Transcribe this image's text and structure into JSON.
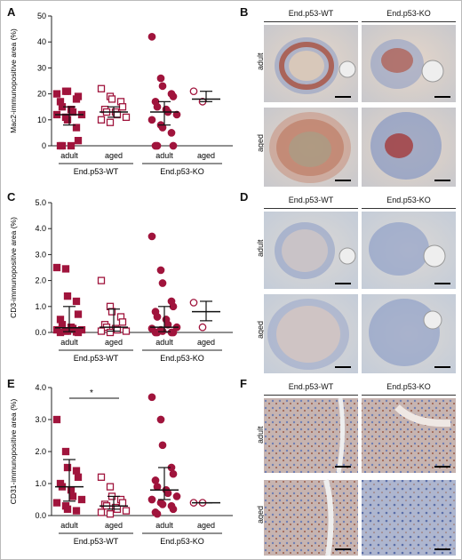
{
  "panels": {
    "a": "A",
    "b": "B",
    "c": "C",
    "d": "D",
    "e": "E",
    "f": "F"
  },
  "colors": {
    "accent": "#a0143c"
  },
  "chart_data": [
    {
      "type": "scatter",
      "ylabel": "Mac2-immunopositive area (%)",
      "ylim": [
        0,
        50
      ],
      "yticks": [
        "0",
        "10",
        "20",
        "30",
        "40",
        "50"
      ],
      "categories": [
        "adult",
        "aged",
        "adult",
        "aged"
      ],
      "groups": [
        "End.p53-WT",
        "End.p53-KO"
      ],
      "markers": [
        "filled-square",
        "open-square",
        "filled-circle",
        "open-circle"
      ],
      "points": [
        [
          20,
          21,
          21,
          18,
          19,
          17,
          15,
          14,
          13,
          12,
          12,
          11,
          10,
          7,
          2,
          0,
          0,
          0
        ],
        [
          22,
          19,
          18,
          17,
          15,
          14,
          13,
          13,
          12,
          11,
          10,
          9
        ],
        [
          42,
          26,
          23,
          20,
          19,
          17,
          15,
          14,
          13,
          12,
          10,
          8,
          7,
          5,
          0,
          0,
          0
        ],
        [
          21,
          17
        ]
      ],
      "median": [
        12,
        13,
        13,
        18
      ],
      "err_low": [
        8,
        11,
        8,
        17
      ],
      "err_high": [
        15,
        15,
        17,
        21
      ],
      "annotation": ""
    },
    {
      "type": "scatter",
      "ylabel": "CD3-immunopositive area (%)",
      "ylim": [
        0,
        5
      ],
      "yticks": [
        "0.0",
        "1.0",
        "2.0",
        "3.0",
        "4.0",
        "5.0"
      ],
      "categories": [
        "adult",
        "aged",
        "adult",
        "aged"
      ],
      "groups": [
        "End.p53-WT",
        "End.p53-KO"
      ],
      "markers": [
        "filled-square",
        "open-square",
        "filled-circle",
        "open-circle"
      ],
      "points": [
        [
          2.5,
          2.45,
          1.4,
          1.2,
          0.7,
          0.5,
          0.3,
          0.2,
          0.15,
          0.1,
          0.1,
          0.05,
          0.05,
          0.02,
          0,
          0
        ],
        [
          2.0,
          1.0,
          0.8,
          0.6,
          0.4,
          0.3,
          0.2,
          0.15,
          0.1,
          0.05,
          0.05,
          0
        ],
        [
          3.7,
          2.4,
          1.9,
          1.2,
          1.0,
          0.8,
          0.6,
          0.5,
          0.3,
          0.2,
          0.15,
          0.1,
          0.05,
          0,
          0,
          0,
          0
        ],
        [
          1.15,
          0.2
        ]
      ],
      "median": [
        0.18,
        0.2,
        0.2,
        0.8
      ],
      "err_low": [
        0.03,
        0.05,
        0.03,
        0.45
      ],
      "err_high": [
        1.0,
        0.9,
        1.0,
        1.2
      ],
      "annotation": ""
    },
    {
      "type": "scatter",
      "ylabel": "CD31-immunopositive area (%)",
      "ylim": [
        0,
        4
      ],
      "yticks": [
        "0.0",
        "1.0",
        "2.0",
        "3.0",
        "4.0"
      ],
      "categories": [
        "adult",
        "aged",
        "adult",
        "aged"
      ],
      "groups": [
        "End.p53-WT",
        "End.p53-KO"
      ],
      "markers": [
        "filled-square",
        "open-square",
        "filled-circle",
        "open-circle"
      ],
      "points": [
        [
          3.0,
          2.0,
          1.5,
          1.4,
          1.2,
          1.0,
          0.9,
          0.8,
          0.6,
          0.5,
          0.4,
          0.3,
          0.2,
          0.15
        ],
        [
          1.2,
          0.9,
          0.6,
          0.5,
          0.4,
          0.35,
          0.3,
          0.25,
          0.2,
          0.15,
          0.1,
          0.05
        ],
        [
          3.7,
          3.0,
          2.2,
          1.5,
          1.3,
          1.1,
          0.9,
          0.8,
          0.7,
          0.6,
          0.5,
          0.4,
          0.35,
          0.3,
          0.2,
          0.1,
          0.05
        ],
        [
          0.4,
          0.4
        ]
      ],
      "median": [
        0.9,
        0.3,
        0.8,
        0.4
      ],
      "err_low": [
        0.45,
        0.2,
        0.5,
        0.4
      ],
      "err_high": [
        1.75,
        0.6,
        1.5,
        0.4
      ],
      "annotation": "*"
    }
  ],
  "micro": [
    {
      "col_headers": [
        "End.p53-WT",
        "End.p53-KO"
      ],
      "row_labels": [
        "adult",
        "aged"
      ]
    },
    {
      "col_headers": [
        "End.p53-WT",
        "End.p53-KO"
      ],
      "row_labels": [
        "adult",
        "aged"
      ]
    },
    {
      "col_headers": [
        "End.p53-WT",
        "End.p53-KO"
      ],
      "row_labels": [
        "adult",
        "aged"
      ]
    }
  ]
}
